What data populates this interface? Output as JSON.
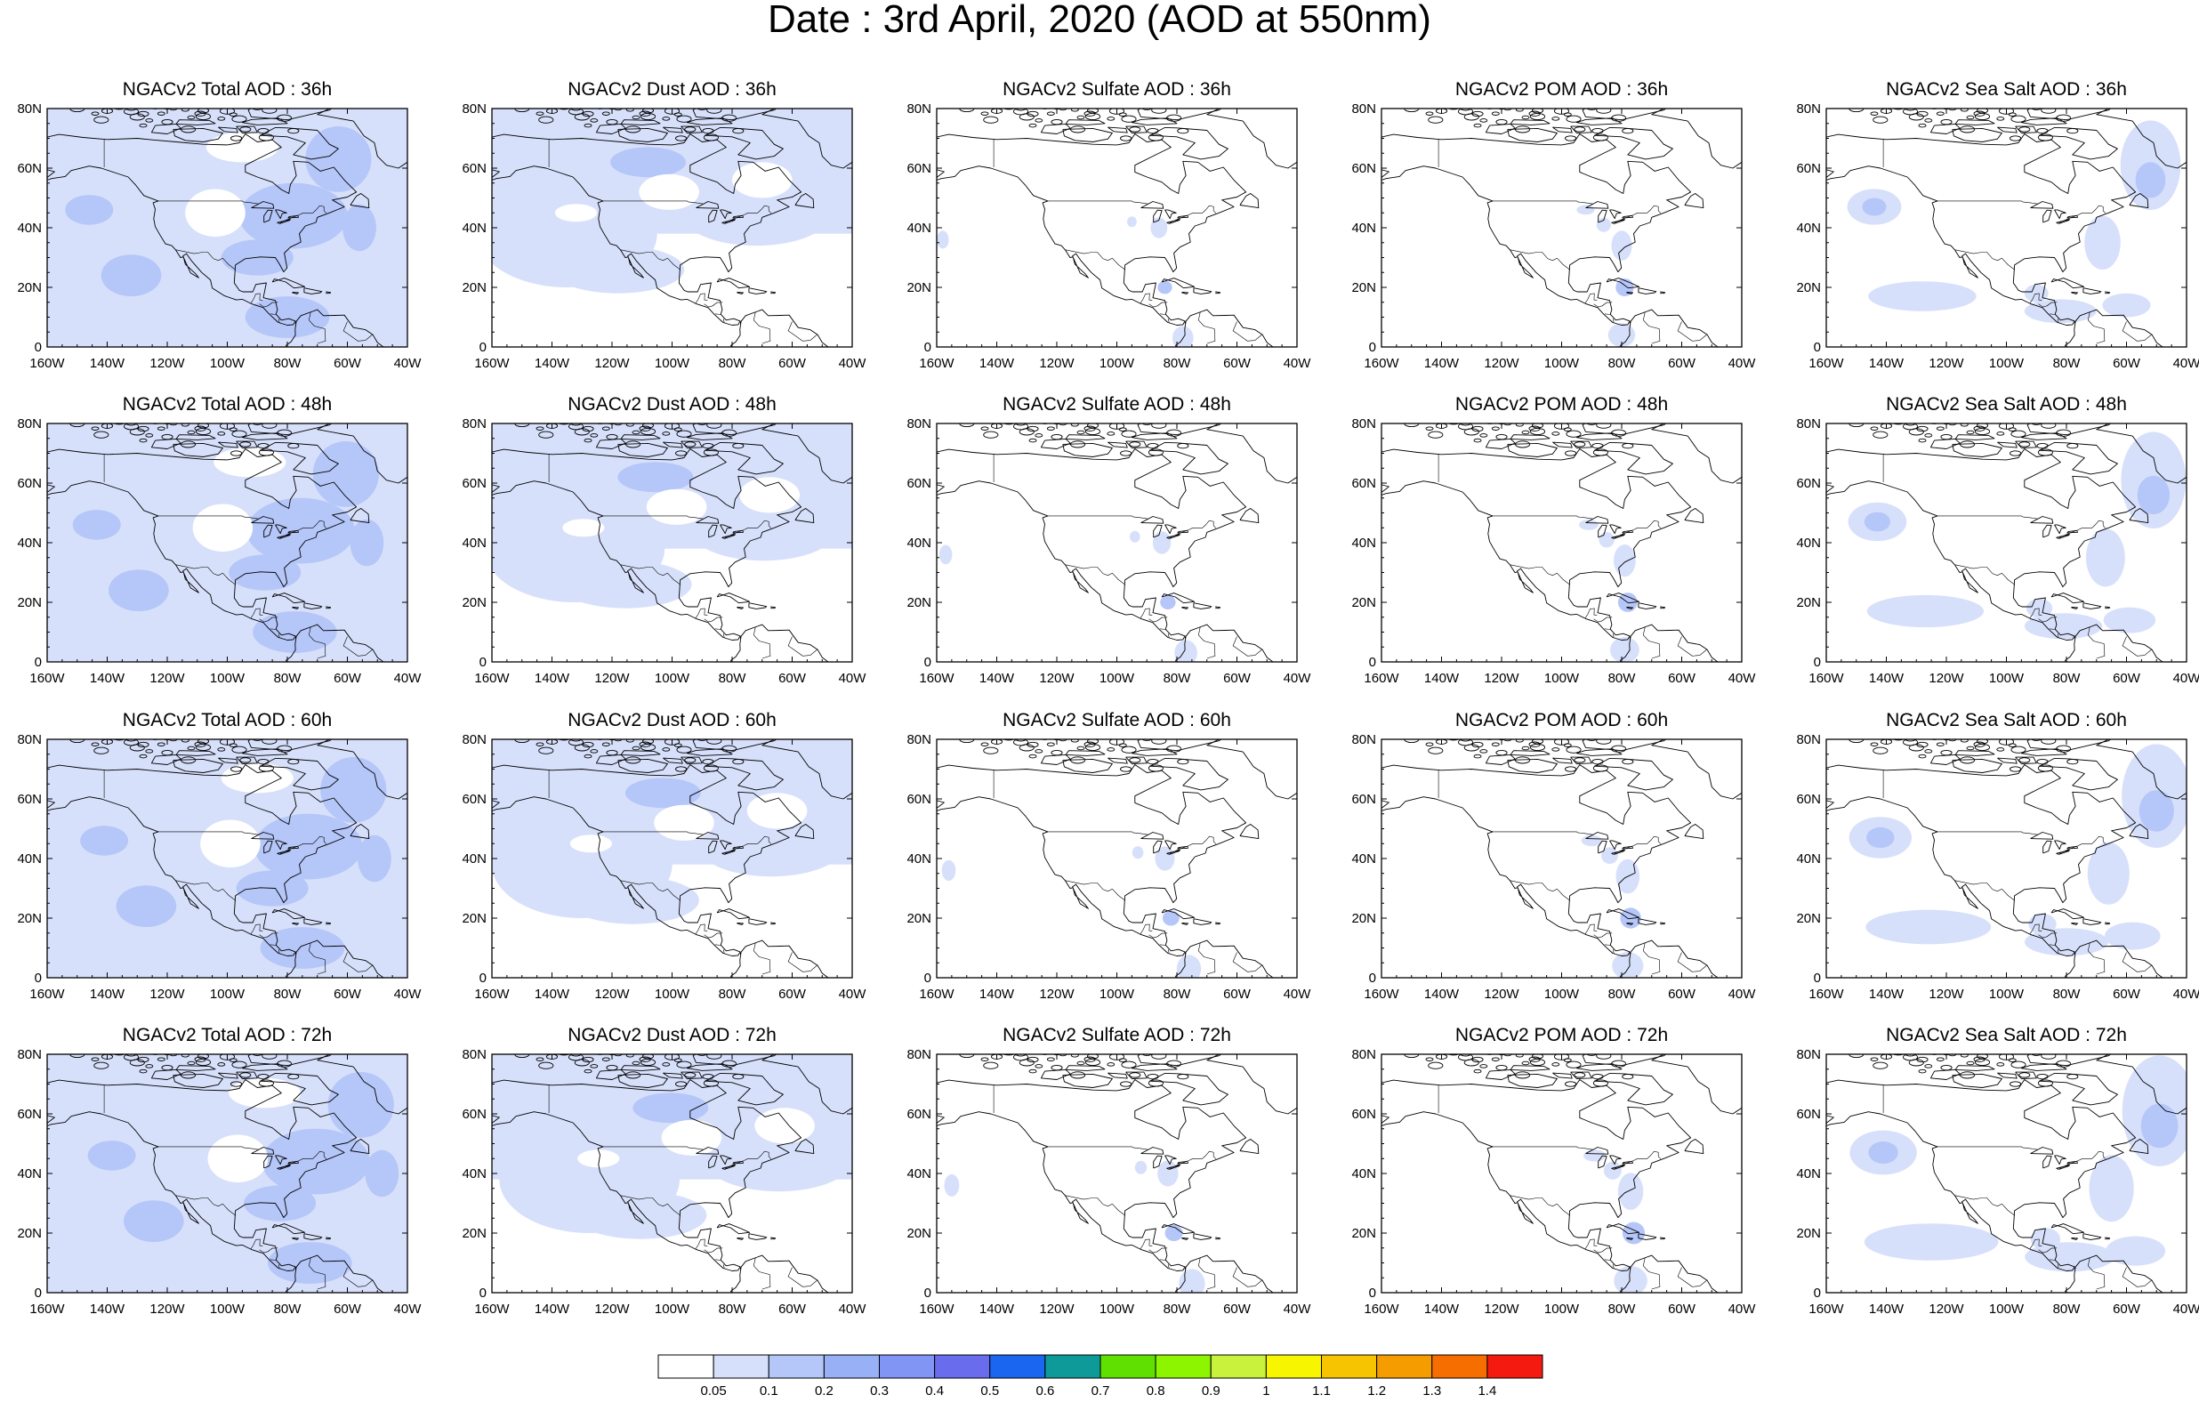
{
  "title": "Date : 3rd April, 2020 (AOD at 550nm)",
  "x_ticks": [
    "160W",
    "140W",
    "120W",
    "100W",
    "80W",
    "60W",
    "40W"
  ],
  "y_ticks": [
    "0",
    "20N",
    "40N",
    "60N",
    "80N"
  ],
  "rows": [
    {
      "panels": [
        {
          "title": "NGACv2 Total AOD : 36h",
          "species": "total"
        },
        {
          "title": "NGACv2 Dust AOD : 36h",
          "species": "dust"
        },
        {
          "title": "NGACv2 Sulfate AOD : 36h",
          "species": "sulfate"
        },
        {
          "title": "NGACv2 POM AOD : 36h",
          "species": "pom"
        },
        {
          "title": "NGACv2 Sea Salt AOD : 36h",
          "species": "seasalt"
        }
      ]
    },
    {
      "panels": [
        {
          "title": "NGACv2 Total AOD : 48h",
          "species": "total"
        },
        {
          "title": "NGACv2 Dust AOD : 48h",
          "species": "dust"
        },
        {
          "title": "NGACv2 Sulfate AOD : 48h",
          "species": "sulfate"
        },
        {
          "title": "NGACv2 POM AOD : 48h",
          "species": "pom"
        },
        {
          "title": "NGACv2 Sea Salt AOD : 48h",
          "species": "seasalt"
        }
      ]
    },
    {
      "panels": [
        {
          "title": "NGACv2 Total AOD : 60h",
          "species": "total"
        },
        {
          "title": "NGACv2 Dust AOD : 60h",
          "species": "dust"
        },
        {
          "title": "NGACv2 Sulfate AOD : 60h",
          "species": "sulfate"
        },
        {
          "title": "NGACv2 POM AOD : 60h",
          "species": "pom"
        },
        {
          "title": "NGACv2 Sea Salt AOD : 60h",
          "species": "seasalt"
        }
      ]
    },
    {
      "panels": [
        {
          "title": "NGACv2 Total AOD : 72h",
          "species": "total"
        },
        {
          "title": "NGACv2 Dust AOD : 72h",
          "species": "dust"
        },
        {
          "title": "NGACv2 Sulfate AOD : 72h",
          "species": "sulfate"
        },
        {
          "title": "NGACv2 POM AOD : 72h",
          "species": "pom"
        },
        {
          "title": "NGACv2 Sea Salt  AOD : 72h",
          "species": "seasalt"
        }
      ]
    }
  ],
  "colorbar": {
    "labels": [
      "0.05",
      "0.1",
      "0.2",
      "0.3",
      "0.4",
      "0.5",
      "0.6",
      "0.7",
      "0.8",
      "0.9",
      "1",
      "1.1",
      "1.2",
      "1.3",
      "1.4"
    ],
    "colors": [
      "#ffffff",
      "#d7e0fb",
      "#b5c6f8",
      "#98b0f6",
      "#8195f5",
      "#6a6cee",
      "#1a66f0",
      "#0f9a9a",
      "#5fe000",
      "#8df500",
      "#c8f23c",
      "#f8f500",
      "#f6c400",
      "#f59c00",
      "#f66d00",
      "#f41a10"
    ]
  }
}
